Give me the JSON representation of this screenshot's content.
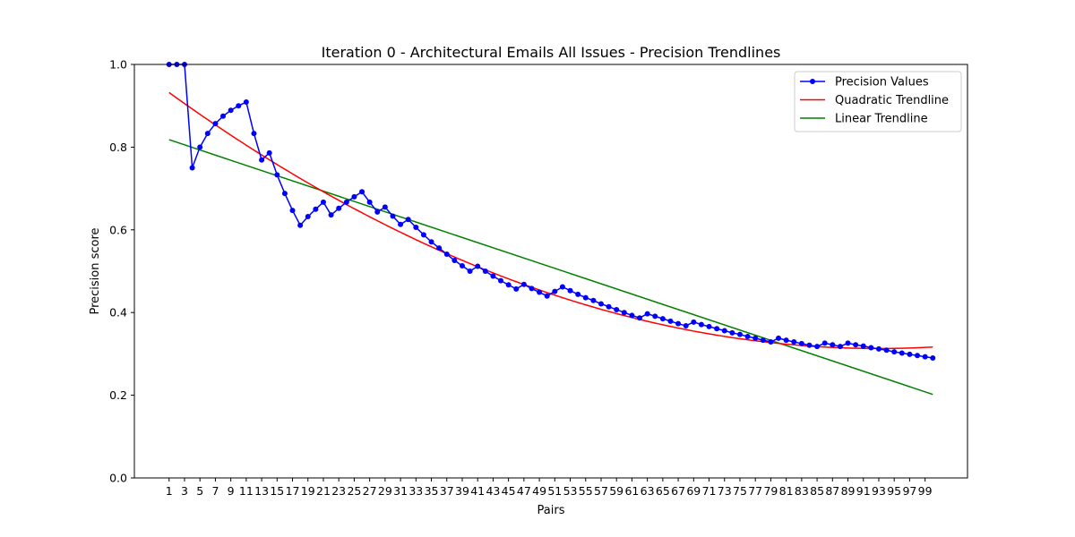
{
  "chart_data": {
    "type": "line",
    "title": "Iteration 0 - Architectural Emails All Issues - Precision Trendlines",
    "xlabel": "Pairs",
    "ylabel": "Precision score",
    "ylim": [
      0,
      1.0
    ],
    "xlim": [
      -3.5,
      104.5
    ],
    "yticks": [
      0.0,
      0.2,
      0.4,
      0.6,
      0.8,
      1.0
    ],
    "ytick_labels": [
      "0.0",
      "0.2",
      "0.4",
      "0.6",
      "0.8",
      "1.0"
    ],
    "x": [
      1,
      2,
      3,
      4,
      5,
      6,
      7,
      8,
      9,
      10,
      11,
      12,
      13,
      14,
      15,
      16,
      17,
      18,
      19,
      20,
      21,
      22,
      23,
      24,
      25,
      26,
      27,
      28,
      29,
      30,
      31,
      32,
      33,
      34,
      35,
      36,
      37,
      38,
      39,
      40,
      41,
      42,
      43,
      44,
      45,
      46,
      47,
      48,
      49,
      50,
      51,
      52,
      53,
      54,
      55,
      56,
      57,
      58,
      59,
      60,
      61,
      62,
      63,
      64,
      65,
      66,
      67,
      68,
      69,
      70,
      71,
      72,
      73,
      74,
      75,
      76,
      77,
      78,
      79,
      80,
      81,
      82,
      83,
      84,
      85,
      86,
      87,
      88,
      89,
      90,
      91,
      92,
      93,
      94,
      95,
      96,
      97,
      98,
      99,
      100
    ],
    "xtick_labels": [
      "1",
      "3",
      "5",
      "7",
      "9",
      "11",
      "13",
      "15",
      "17",
      "19",
      "21",
      "23",
      "25",
      "27",
      "29",
      "31",
      "33",
      "35",
      "37",
      "39",
      "41",
      "43",
      "45",
      "47",
      "49",
      "51",
      "53",
      "55",
      "57",
      "59",
      "61",
      "63",
      "65",
      "67",
      "69",
      "71",
      "73",
      "75",
      "77",
      "79",
      "81",
      "83",
      "85",
      "87",
      "89",
      "91",
      "93",
      "95",
      "97",
      "99"
    ],
    "legend_position": "top-right",
    "grid": false,
    "series": [
      {
        "name": "Precision Values",
        "style": "line-markers",
        "color": "#0000ff",
        "values": [
          1.0,
          1.0,
          1.0,
          0.75,
          0.8,
          0.833,
          0.857,
          0.875,
          0.889,
          0.9,
          0.909,
          0.833,
          0.769,
          0.786,
          0.733,
          0.688,
          0.647,
          0.611,
          0.632,
          0.65,
          0.667,
          0.636,
          0.652,
          0.667,
          0.68,
          0.692,
          0.667,
          0.643,
          0.655,
          0.633,
          0.613,
          0.625,
          0.606,
          0.588,
          0.571,
          0.556,
          0.541,
          0.526,
          0.513,
          0.5,
          0.512,
          0.5,
          0.488,
          0.477,
          0.467,
          0.457,
          0.468,
          0.458,
          0.449,
          0.44,
          0.451,
          0.462,
          0.453,
          0.444,
          0.436,
          0.429,
          0.421,
          0.414,
          0.407,
          0.4,
          0.393,
          0.387,
          0.397,
          0.391,
          0.385,
          0.379,
          0.373,
          0.368,
          0.377,
          0.371,
          0.366,
          0.361,
          0.356,
          0.351,
          0.347,
          0.342,
          0.338,
          0.333,
          0.329,
          0.338,
          0.333,
          0.329,
          0.325,
          0.321,
          0.318,
          0.326,
          0.322,
          0.318,
          0.326,
          0.322,
          0.319,
          0.315,
          0.312,
          0.309,
          0.305,
          0.302,
          0.299,
          0.296,
          0.293,
          0.29
        ]
      },
      {
        "name": "Quadratic Trendline",
        "style": "line",
        "color": "#ff0000",
        "start": 0.932,
        "vertex_x": 93,
        "vertex_y": 0.313,
        "end": 0.315
      },
      {
        "name": "Linear Trendline",
        "style": "line",
        "color": "#008000",
        "values_at_ends": [
          0.818,
          0.202
        ]
      }
    ]
  }
}
